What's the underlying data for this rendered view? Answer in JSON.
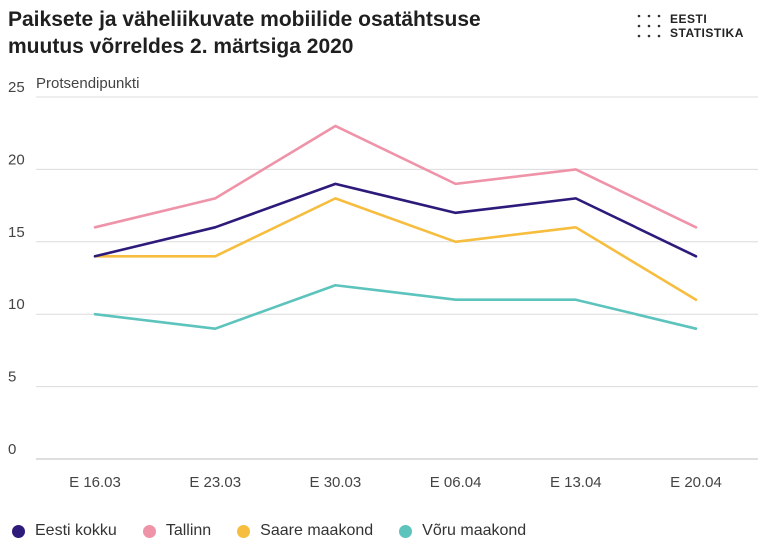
{
  "title_line1": "Paiksete ja väheliikuvate mobiilide osatähtsuse",
  "title_line2": "muutus võrreldes 2. märtsiga 2020",
  "logo": {
    "line1": "EESTI",
    "line2": "STATISTIKA"
  },
  "chart_data": {
    "type": "line",
    "title": "Paiksete ja väheliikuvate mobiilide osatähtsuse muutus võrreldes 2. märtsiga 2020",
    "ylabel": "Protsendipunkti",
    "xlabel": "",
    "categories": [
      "E 16.03",
      "E 23.03",
      "E 30.03",
      "E 06.04",
      "E 13.04",
      "E 20.04"
    ],
    "ylim": [
      0,
      25
    ],
    "yticks": [
      0,
      5,
      10,
      15,
      20,
      25
    ],
    "grid": true,
    "legend_position": "bottom",
    "series": [
      {
        "name": "Eesti kokku",
        "color": "#2e1a7a",
        "values": [
          14,
          16,
          19,
          17,
          18,
          14
        ]
      },
      {
        "name": "Tallinn",
        "color": "#ef93a8",
        "values": [
          16,
          18,
          23,
          19,
          20,
          16
        ]
      },
      {
        "name": "Saare maakond",
        "color": "#f6bd3e",
        "values": [
          14,
          14,
          18,
          15,
          16,
          11
        ]
      },
      {
        "name": "Võru maakond",
        "color": "#5cc3bd",
        "values": [
          10,
          9,
          12,
          11,
          11,
          9
        ]
      }
    ]
  }
}
